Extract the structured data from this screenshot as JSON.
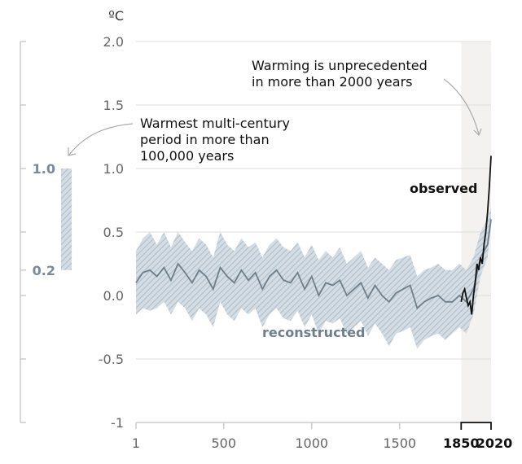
{
  "chart_data": {
    "type": "line",
    "unit_label": "ºC",
    "ylim": [
      -1,
      2
    ],
    "y_ticks": [
      "2.0",
      "1.5",
      "1.0",
      "0.5",
      "0.0",
      "-0.5",
      "-1"
    ],
    "y_tick_values": [
      2.0,
      1.5,
      1.0,
      0.5,
      0.0,
      -0.5,
      -1
    ],
    "x_ticks": [
      "1",
      "500",
      "1000",
      "1500"
    ],
    "x_tick_values": [
      1,
      500,
      1000,
      1500
    ],
    "x_ticks_bold": [
      "1850",
      "2020"
    ],
    "x_ticks_bold_values": [
      1850,
      2020
    ],
    "xlim": [
      1,
      2020
    ],
    "grid": true,
    "shaded_period": [
      1850,
      2020
    ],
    "left_panel": {
      "range_low": 0.2,
      "range_high": 1.0,
      "labels": [
        "1.0",
        "0.2"
      ],
      "ylim": [
        -1,
        2
      ]
    },
    "annotations": [
      {
        "text_lines": [
          "Warmest multi-century",
          "period in more than",
          "100,000 years"
        ]
      },
      {
        "text_lines": [
          "Warming is unprecedented",
          "in more than 2000 years"
        ]
      }
    ],
    "series": [
      {
        "name": "reconstructed",
        "color": "#6e7f8c",
        "band_color": "#b8c4cf",
        "x": [
          1,
          40,
          80,
          120,
          160,
          200,
          240,
          280,
          320,
          360,
          400,
          440,
          480,
          520,
          560,
          600,
          640,
          680,
          720,
          760,
          800,
          840,
          880,
          920,
          960,
          1000,
          1040,
          1080,
          1120,
          1160,
          1200,
          1240,
          1280,
          1320,
          1360,
          1400,
          1440,
          1480,
          1520,
          1560,
          1600,
          1640,
          1680,
          1720,
          1760,
          1800,
          1840,
          1880,
          1920,
          1960,
          2000,
          2020
        ],
        "values": [
          0.1,
          0.18,
          0.2,
          0.15,
          0.22,
          0.12,
          0.25,
          0.18,
          0.1,
          0.2,
          0.15,
          0.05,
          0.22,
          0.15,
          0.1,
          0.2,
          0.12,
          0.18,
          0.05,
          0.15,
          0.2,
          0.12,
          0.1,
          0.18,
          0.05,
          0.15,
          0.0,
          0.1,
          0.08,
          0.12,
          0.0,
          0.05,
          0.1,
          -0.02,
          0.08,
          0.0,
          -0.05,
          0.02,
          0.05,
          0.08,
          -0.1,
          -0.05,
          -0.02,
          0.0,
          -0.05,
          -0.05,
          0.0,
          -0.05,
          0.05,
          0.3,
          0.4,
          0.6
        ],
        "band_low": [
          -0.15,
          -0.1,
          -0.12,
          -0.1,
          -0.05,
          -0.15,
          -0.05,
          -0.1,
          -0.2,
          -0.1,
          -0.15,
          -0.25,
          -0.05,
          -0.15,
          -0.2,
          -0.1,
          -0.15,
          -0.1,
          -0.25,
          -0.15,
          -0.1,
          -0.18,
          -0.2,
          -0.12,
          -0.25,
          -0.15,
          -0.3,
          -0.2,
          -0.22,
          -0.18,
          -0.3,
          -0.25,
          -0.2,
          -0.32,
          -0.22,
          -0.3,
          -0.4,
          -0.3,
          -0.28,
          -0.25,
          -0.42,
          -0.35,
          -0.32,
          -0.3,
          -0.35,
          -0.3,
          -0.25,
          -0.3,
          -0.15,
          0.15,
          0.3,
          0.55
        ],
        "band_high": [
          0.35,
          0.45,
          0.5,
          0.4,
          0.5,
          0.38,
          0.5,
          0.42,
          0.35,
          0.45,
          0.4,
          0.3,
          0.5,
          0.4,
          0.35,
          0.45,
          0.38,
          0.42,
          0.3,
          0.4,
          0.45,
          0.38,
          0.35,
          0.42,
          0.3,
          0.4,
          0.28,
          0.35,
          0.3,
          0.38,
          0.25,
          0.3,
          0.35,
          0.22,
          0.3,
          0.25,
          0.2,
          0.28,
          0.3,
          0.32,
          0.15,
          0.2,
          0.22,
          0.25,
          0.2,
          0.2,
          0.25,
          0.2,
          0.3,
          0.5,
          0.6,
          0.7
        ]
      },
      {
        "name": "observed",
        "color": "#111111",
        "x": [
          1850,
          1860,
          1870,
          1880,
          1890,
          1900,
          1910,
          1920,
          1930,
          1940,
          1950,
          1960,
          1970,
          1980,
          1990,
          2000,
          2010,
          2020
        ],
        "values": [
          -0.05,
          0.02,
          0.05,
          -0.02,
          -0.08,
          -0.05,
          -0.15,
          0.0,
          0.1,
          0.25,
          0.2,
          0.3,
          0.25,
          0.4,
          0.5,
          0.65,
          0.85,
          1.1
        ]
      }
    ]
  }
}
